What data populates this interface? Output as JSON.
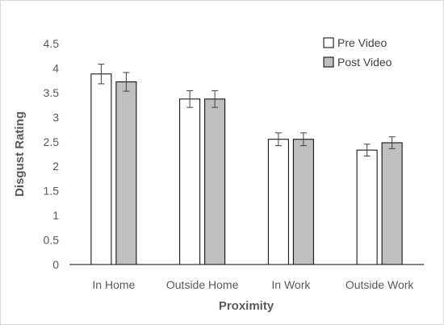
{
  "chart_data": {
    "type": "bar",
    "title": "",
    "xlabel": "Proximity",
    "ylabel": "Disgust Rating",
    "categories": [
      "In Home",
      "Outside Home",
      "In Work",
      "Outside Work"
    ],
    "ylim": [
      0,
      4.5
    ],
    "yticks": [
      "0",
      "0.5",
      "1",
      "1.5",
      "2",
      "2.5",
      "3",
      "3.5",
      "4",
      "4.5"
    ],
    "grid": false,
    "legend_position": "top-right",
    "series": [
      {
        "name": "Pre Video",
        "color": "#ffffff",
        "values": [
          3.88,
          3.37,
          2.55,
          2.33
        ],
        "errors": [
          0.2,
          0.17,
          0.13,
          0.12
        ]
      },
      {
        "name": "Post Video",
        "color": "#bfbfbf",
        "values": [
          3.72,
          3.37,
          2.55,
          2.48
        ],
        "errors": [
          0.19,
          0.17,
          0.13,
          0.12
        ]
      }
    ]
  }
}
